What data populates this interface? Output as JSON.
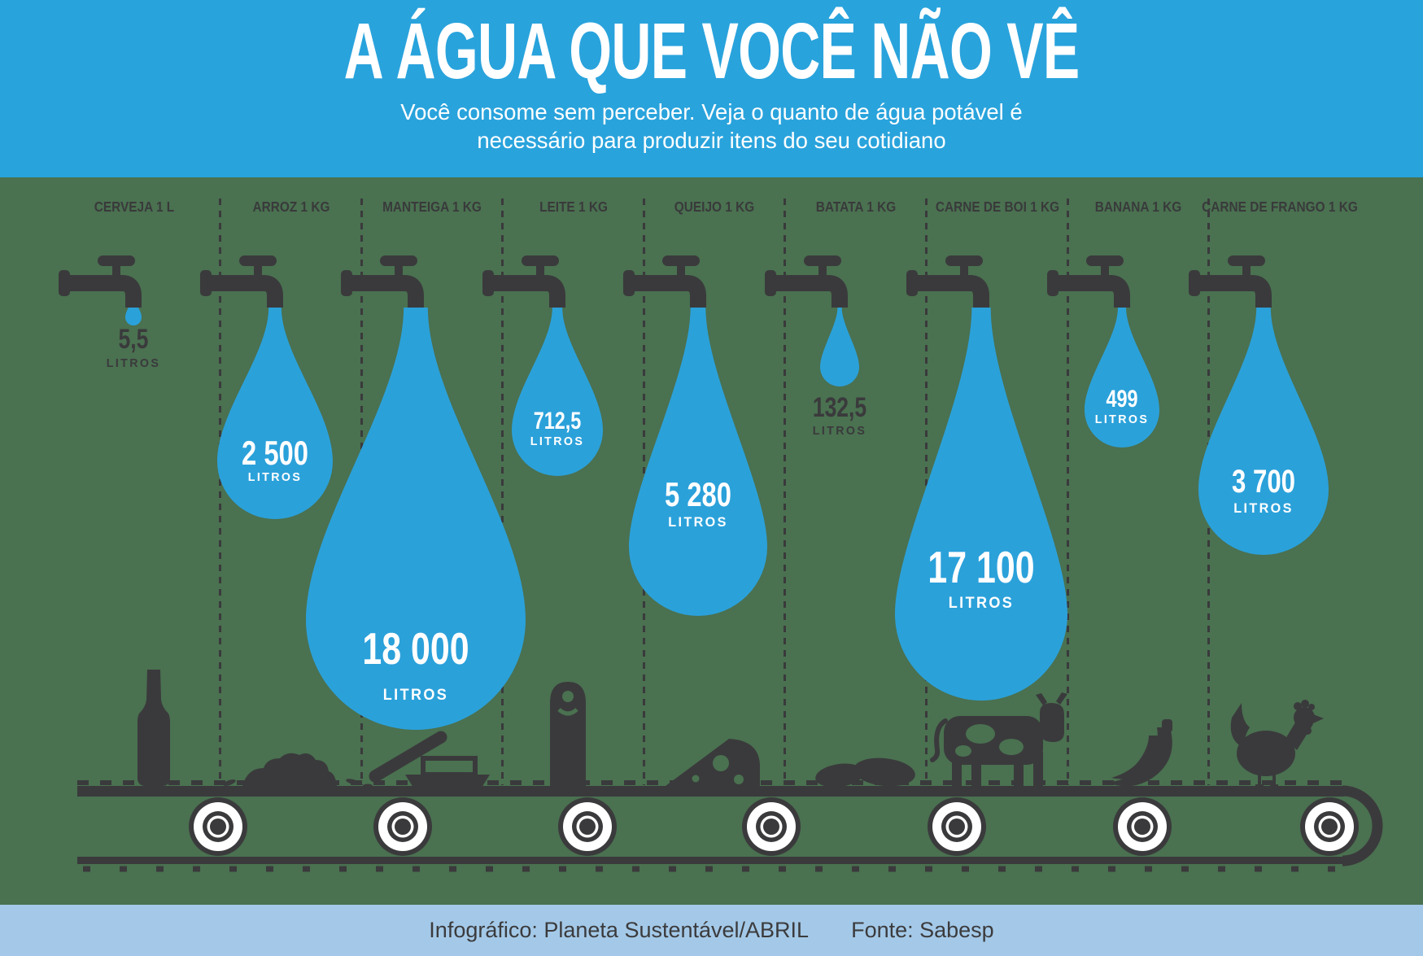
{
  "header": {
    "title": "A ÁGUA QUE VOCÊ NÃO VÊ",
    "subtitle": "Você consome sem perceber. Veja o quanto de água potável é necessário para produzir itens do seu cotidiano"
  },
  "columns": [
    {
      "id": "cerveja",
      "label": "CERVEJA 1 L",
      "value": "5,5",
      "unit": "LITROS",
      "litros": 5.5,
      "icon": "beer-bottle-icon"
    },
    {
      "id": "arroz",
      "label": "ARROZ 1 KG",
      "value": "2 500",
      "unit": "LITROS",
      "litros": 2500,
      "icon": "rice-pile-icon"
    },
    {
      "id": "manteiga",
      "label": "MANTEIGA 1 KG",
      "value": "18 000",
      "unit": "LITROS",
      "litros": 18000,
      "icon": "butter-knife-dish-icon"
    },
    {
      "id": "leite",
      "label": "LEITE 1 KG",
      "value": "712,5",
      "unit": "LITROS",
      "litros": 712.5,
      "icon": "milk-canister-icon"
    },
    {
      "id": "queijo",
      "label": "QUEIJO 1 KG",
      "value": "5 280",
      "unit": "LITROS",
      "litros": 5280,
      "icon": "cheese-wedge-icon"
    },
    {
      "id": "batata",
      "label": "BATATA 1 KG",
      "value": "132,5",
      "unit": "LITROS",
      "litros": 132.5,
      "icon": "potatoes-icon"
    },
    {
      "id": "carne-de-boi",
      "label": "CARNE DE BOI 1 KG",
      "value": "17 100",
      "unit": "LITROS",
      "litros": 17100,
      "icon": "cow-icon"
    },
    {
      "id": "banana",
      "label": "BANANA 1 KG",
      "value": "499",
      "unit": "LITROS",
      "litros": 499,
      "icon": "bananas-icon"
    },
    {
      "id": "carne-de-frango",
      "label": "CARNE DE FRANGO 1 KG",
      "value": "3 700",
      "unit": "LITROS",
      "litros": 3700,
      "icon": "chicken-icon"
    }
  ],
  "footer": {
    "credit": "Infográfico: Planeta Sustentável/ABRIL",
    "source": "Fonte: Sabesp"
  },
  "colors": {
    "header_blue": "#29a3dc",
    "drop_blue": "#2ba1da",
    "background_green": "#4a7150",
    "footer_blue": "#a4c9e8",
    "dark": "#3a3a3c",
    "white": "#ffffff"
  },
  "chart_data": {
    "type": "pictogram",
    "title": "A ÁGUA QUE VOCÊ NÃO VÊ",
    "subtitle": "Você consome sem perceber. Veja o quanto de água potável é necessário para produzir itens do seu cotidiano",
    "categories": [
      "CERVEJA 1 L",
      "ARROZ 1 KG",
      "MANTEIGA 1 KG",
      "LEITE 1 KG",
      "QUEIJO 1 KG",
      "BATATA 1 KG",
      "CARNE DE BOI 1 KG",
      "BANANA 1 KG",
      "CARNE DE FRANGO 1 KG"
    ],
    "values": [
      5.5,
      2500,
      18000,
      712.5,
      5280,
      132.5,
      17100,
      499,
      3700
    ],
    "value_labels": [
      "5,5",
      "2 500",
      "18 000",
      "712,5",
      "5 280",
      "132,5",
      "17 100",
      "499",
      "3 700"
    ],
    "unit": "LITROS",
    "legend_position": "none",
    "grid": false,
    "credit": "Infográfico: Planeta Sustentável/ABRIL",
    "source": "Fonte: Sabesp"
  }
}
